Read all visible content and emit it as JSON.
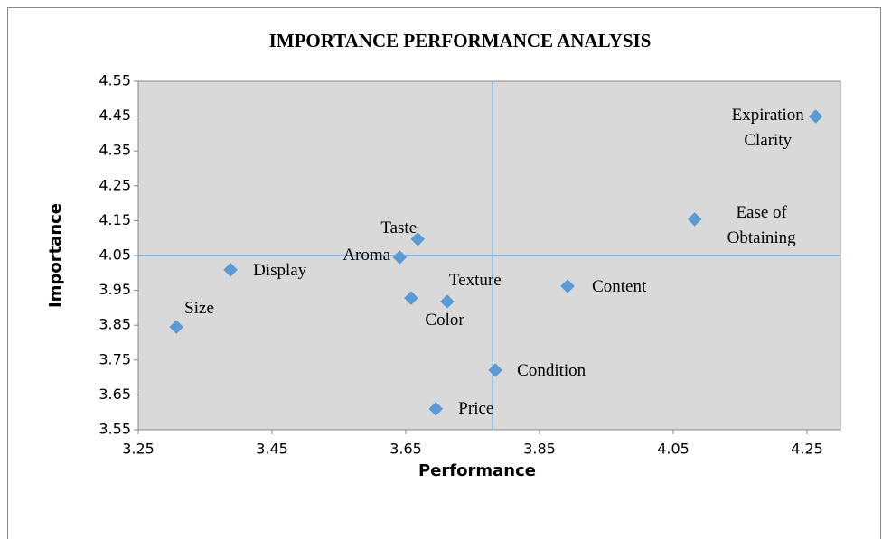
{
  "chart_data": {
    "type": "scatter",
    "title": "IMPORTANCE PERFORMANCE ANALYSIS",
    "x_label": "Performance",
    "y_label": "Importance",
    "labels": [
      "Expiration\nClarity",
      "Ease of\nObtaining",
      "Taste",
      "Aroma",
      "Display",
      "Size",
      "Color",
      "Texture",
      "Content",
      "Condition",
      "Price"
    ],
    "x": [
      4.263,
      4.082,
      3.668,
      3.641,
      3.388,
      3.307,
      3.658,
      3.712,
      3.892,
      3.784,
      3.695
    ],
    "values": [
      4.449,
      4.154,
      4.097,
      4.045,
      4.009,
      3.845,
      3.928,
      3.918,
      3.962,
      3.721,
      3.61
    ],
    "color": "#5b9bd5",
    "reference_lines": {
      "x": 3.78,
      "y": 4.05
    },
    "xlim": [
      3.25,
      4.3
    ],
    "ylim": [
      3.55,
      4.55
    ],
    "xticks": [
      3.25,
      3.45,
      3.65,
      3.85,
      4.05,
      4.25
    ],
    "yticks": [
      3.55,
      3.65,
      3.75,
      3.85,
      3.95,
      4.05,
      4.15,
      4.25,
      4.35,
      4.45,
      4.55
    ],
    "grid": false
  }
}
